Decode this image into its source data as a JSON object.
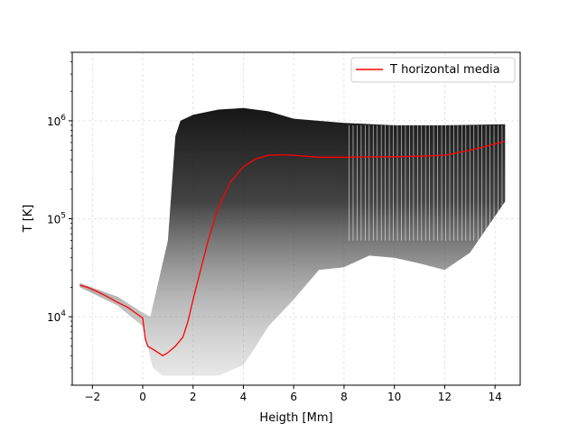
{
  "chart_data": {
    "type": "line",
    "xlabel": "Heigth [Mm]",
    "ylabel": "T [K]",
    "x_scale": "linear",
    "y_scale": "log",
    "xlim": [
      -2.8,
      15.0
    ],
    "ylim": [
      2000,
      5000000
    ],
    "x_ticks": [
      -2,
      0,
      2,
      4,
      6,
      8,
      10,
      12,
      14
    ],
    "x_tick_labels": [
      "−2",
      "0",
      "2",
      "4",
      "6",
      "8",
      "10",
      "12",
      "14"
    ],
    "y_ticks": [
      {
        "value": 10000,
        "base": "10",
        "exp": "4"
      },
      {
        "value": 100000,
        "base": "10",
        "exp": "5"
      },
      {
        "value": 1000000,
        "base": "10",
        "exp": "6"
      }
    ],
    "grid": "dashed, faint",
    "legend_position": "top-right",
    "legend": [
      "T horizontal media"
    ],
    "series": [
      {
        "name": "T horizontal media",
        "color": "#ff0000",
        "x": [
          -2.5,
          -2.2,
          -1.8,
          -1.4,
          -1.0,
          -0.6,
          -0.3,
          0.0,
          0.1,
          0.2,
          0.5,
          0.8,
          1.0,
          1.3,
          1.6,
          1.8,
          2.0,
          2.3,
          2.6,
          3.0,
          3.5,
          4.0,
          4.5,
          5.0,
          5.5,
          6.0,
          7.0,
          8.0,
          9.0,
          10.0,
          11.0,
          12.0,
          13.0,
          14.0,
          14.4
        ],
        "y": [
          21000,
          20000,
          18000,
          16000,
          14000,
          12500,
          11000,
          9700,
          6000,
          5000,
          4500,
          4000,
          4300,
          5000,
          6200,
          9000,
          15000,
          30000,
          60000,
          130000,
          240000,
          340000,
          410000,
          445000,
          450000,
          445000,
          425000,
          425000,
          428000,
          430000,
          435000,
          445000,
          500000,
          580000,
          620000
        ]
      }
    ],
    "density_cloud": {
      "description_note": "",
      "upper_envelope": {
        "x": [
          -2.5,
          -1.0,
          0.0,
          0.3,
          1.0,
          1.3,
          1.5,
          2.0,
          3.0,
          4.0,
          5.0,
          6.0,
          8.0,
          10.0,
          12.0,
          14.4
        ],
        "y": [
          22000,
          16000,
          11000,
          10000,
          60000,
          700000,
          1000000,
          1150000,
          1300000,
          1350000,
          1250000,
          1050000,
          950000,
          900000,
          900000,
          920000
        ]
      },
      "lower_envelope": {
        "x": [
          -2.5,
          -1.0,
          0.0,
          0.4,
          0.8,
          1.5,
          2.0,
          3.0,
          4.0,
          4.5,
          5.0,
          6.0,
          7.0,
          8.0,
          9.0,
          10.0,
          11.0,
          12.0,
          13.0,
          14.4
        ],
        "y": [
          20000,
          13000,
          8000,
          3000,
          2500,
          2500,
          2500,
          2500,
          3200,
          5000,
          8000,
          15000,
          30000,
          32000,
          42000,
          40000,
          35000,
          30000,
          45000,
          150000
        ]
      }
    }
  }
}
